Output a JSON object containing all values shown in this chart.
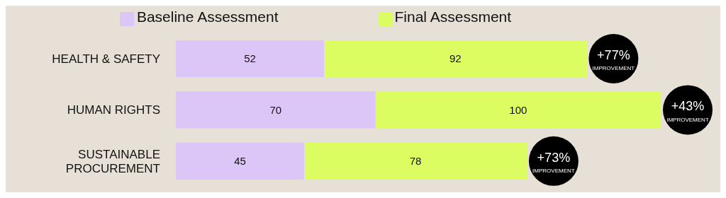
{
  "chart_data": {
    "type": "bar",
    "orientation": "horizontal",
    "stacked": true,
    "categories": [
      "HEALTH & SAFETY",
      "HUMAN RIGHTS",
      "SUSTAINABLE PROCUREMENT"
    ],
    "series": [
      {
        "name": "Baseline Assessment",
        "color": "#dcc5f7",
        "values": [
          52,
          70,
          45
        ]
      },
      {
        "name": "Final Assessment",
        "color": "#dcfd62",
        "values": [
          92,
          100,
          78
        ]
      }
    ],
    "xlim": [
      0,
      170
    ],
    "data_labels": true,
    "grid": false,
    "legend": "top",
    "tick_labels": "y",
    "annotations": [
      {
        "text": "+77% IMPROVEMENT",
        "x": 144,
        "y": "HEALTH & SAFETY"
      },
      {
        "text": "+43% IMPROVEMENT",
        "x": 170,
        "y": "HUMAN RIGHTS"
      },
      {
        "text": "+73% IMPROVEMENT",
        "x": 123,
        "y": "SUSTAINABLE PROCUREMENT"
      }
    ]
  }
}
